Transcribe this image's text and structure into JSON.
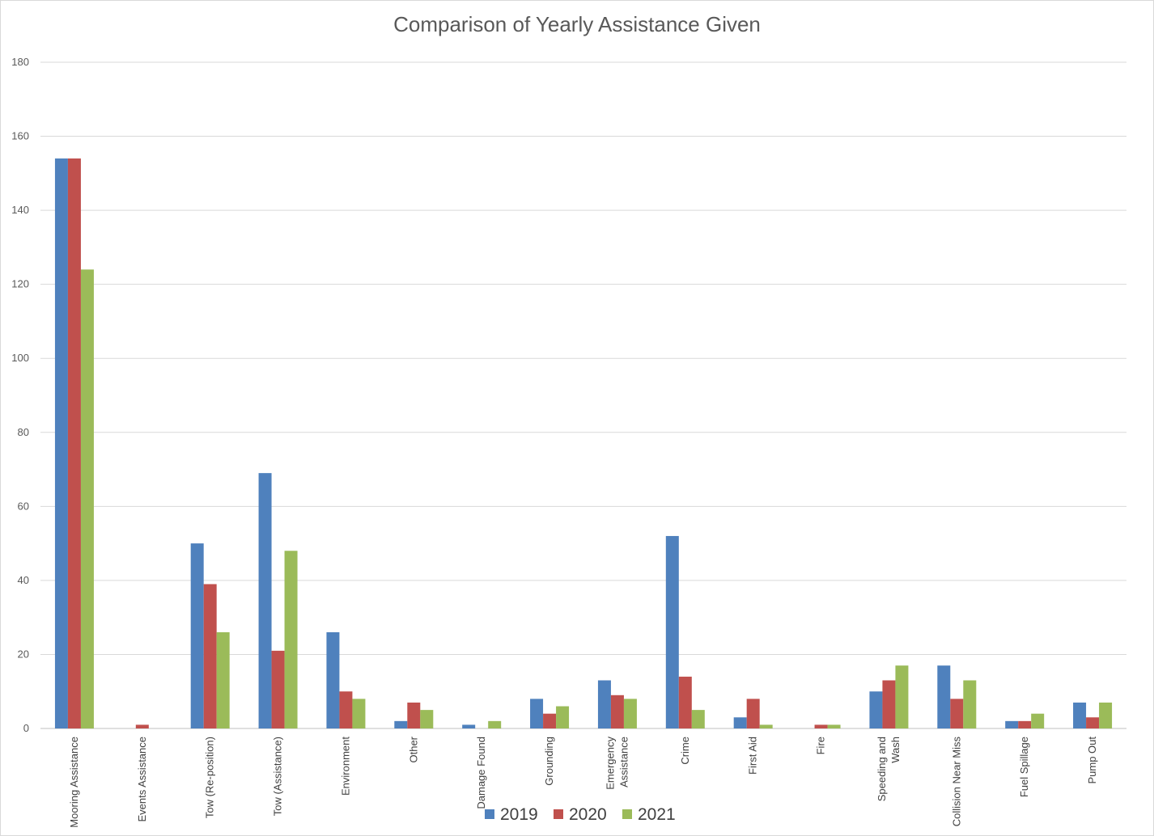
{
  "chart_data": {
    "type": "bar",
    "title": "Comparison of Yearly Assistance Given",
    "xlabel": "",
    "ylabel": "",
    "ylim": [
      0,
      180
    ],
    "yticks": [
      0,
      20,
      40,
      60,
      80,
      100,
      120,
      140,
      160,
      180
    ],
    "grid": true,
    "legend_position": "bottom",
    "categories": [
      [
        "Mooring Assistance"
      ],
      [
        "Events Assistance"
      ],
      [
        "Tow (Re-position)"
      ],
      [
        "Tow (Assistance)"
      ],
      [
        "Environment"
      ],
      [
        "Other"
      ],
      [
        "Damage Found"
      ],
      [
        "Grounding"
      ],
      [
        "Emergency",
        "Assistance"
      ],
      [
        "Crime"
      ],
      [
        "First Aid"
      ],
      [
        "Fire"
      ],
      [
        "Speeding and",
        "Wash"
      ],
      [
        "Collision Near Miss"
      ],
      [
        "Fuel Spillage"
      ],
      [
        "Pump Out"
      ]
    ],
    "series": [
      {
        "name": "2019",
        "color": "#4f81bd",
        "values": [
          154,
          0,
          50,
          69,
          26,
          2,
          1,
          8,
          13,
          52,
          3,
          0,
          10,
          17,
          2,
          7
        ]
      },
      {
        "name": "2020",
        "color": "#c0504d",
        "values": [
          154,
          1,
          39,
          21,
          10,
          7,
          0,
          4,
          9,
          14,
          8,
          1,
          13,
          8,
          2,
          3
        ]
      },
      {
        "name": "2021",
        "color": "#9bbb59",
        "values": [
          124,
          0,
          26,
          48,
          8,
          5,
          2,
          6,
          8,
          5,
          1,
          1,
          17,
          13,
          4,
          7
        ]
      }
    ]
  }
}
